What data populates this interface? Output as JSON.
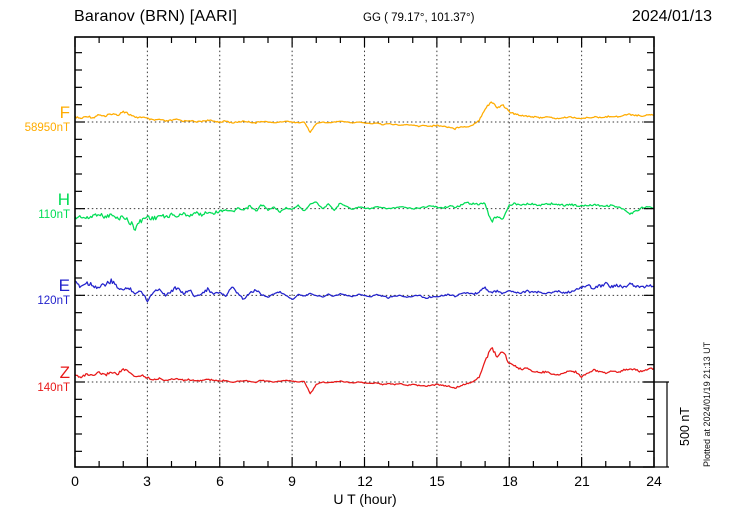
{
  "header": {
    "station": "Baranov (BRN)  [AARI]",
    "coordinates": "GG ( 79.17°, 101.37°)",
    "date": "2024/01/13"
  },
  "x_axis": {
    "label": "U T (hour)",
    "ticks": [
      "0",
      "3",
      "6",
      "9",
      "12",
      "15",
      "18",
      "21",
      "24"
    ]
  },
  "scale_bar": {
    "label": "500 nT",
    "span_nT": 500
  },
  "footer_note": "Plotted at 2024/01/19 21:13 UT",
  "channels": [
    {
      "name": "F",
      "base_label": "58950nT",
      "color": "#FFAC00"
    },
    {
      "name": "H",
      "base_label": "110nT",
      "color": "#00DD55"
    },
    {
      "name": "E",
      "base_label": "120nT",
      "color": "#2222CC"
    },
    {
      "name": "Z",
      "base_label": "140nT",
      "color": "#E81818"
    }
  ],
  "chart_data": {
    "type": "line",
    "title": "Baranov (BRN) [AARI] magnetogram",
    "date": "2024/01/13",
    "xlabel": "U T (hour)",
    "xlim": [
      0,
      24
    ],
    "x_major_tick_hours": 3,
    "x_minor_tick_hours": 1,
    "sample_step_hours": 0.25,
    "y_scale_bar_nT": 500,
    "grid": "dotted vertical at 3h; dotted horizontal baseline per trace",
    "legend_position": "left margin channel labels",
    "series": [
      {
        "name": "F",
        "baseline_nT": 58950,
        "color": "#FFAC00",
        "noise": 0.9,
        "values": [
          30,
          20,
          35,
          25,
          45,
          30,
          50,
          40,
          65,
          45,
          25,
          30,
          20,
          10,
          15,
          5,
          10,
          15,
          5,
          10,
          0,
          5,
          10,
          5,
          0,
          5,
          -5,
          0,
          5,
          0,
          -5,
          5,
          0,
          -5,
          0,
          5,
          0,
          -5,
          0,
          -60,
          -10,
          0,
          -5,
          0,
          5,
          0,
          -5,
          0,
          -5,
          -10,
          -5,
          -15,
          -10,
          -15,
          -20,
          -15,
          -20,
          -25,
          -20,
          -25,
          -20,
          -25,
          -30,
          -40,
          -25,
          -30,
          -15,
          10,
          80,
          118,
          85,
          100,
          60,
          45,
          40,
          35,
          30,
          25,
          30,
          25,
          20,
          25,
          30,
          25,
          20,
          25,
          30,
          25,
          30,
          35,
          30,
          40,
          45,
          40,
          35,
          45,
          40
        ]
      },
      {
        "name": "H",
        "baseline_nT": 110,
        "color": "#00DD55",
        "noise": 1.5,
        "values": [
          -55,
          -45,
          -60,
          -40,
          -30,
          -50,
          -35,
          -60,
          -45,
          -80,
          -110,
          -70,
          -45,
          -60,
          -40,
          -50,
          -35,
          -45,
          -30,
          -40,
          -25,
          -35,
          -20,
          -25,
          -15,
          -5,
          -20,
          0,
          -10,
          15,
          -15,
          25,
          -10,
          10,
          -20,
          5,
          -5,
          20,
          -15,
          30,
          40,
          0,
          25,
          -10,
          35,
          15,
          -5,
          10,
          5,
          0,
          10,
          5,
          0,
          5,
          10,
          5,
          0,
          5,
          10,
          15,
          10,
          5,
          15,
          10,
          20,
          35,
          30,
          25,
          30,
          -75,
          -45,
          -60,
          20,
          30,
          25,
          30,
          25,
          20,
          25,
          30,
          25,
          20,
          25,
          20,
          15,
          20,
          25,
          20,
          15,
          20,
          10,
          -5,
          -35,
          -15,
          5,
          10,
          5
        ]
      },
      {
        "name": "E",
        "baseline_nT": 120,
        "color": "#2222CC",
        "noise": 1.5,
        "values": [
          70,
          55,
          75,
          60,
          45,
          65,
          80,
          50,
          30,
          45,
          10,
          25,
          -30,
          20,
          40,
          0,
          25,
          50,
          10,
          30,
          -10,
          15,
          35,
          5,
          20,
          -5,
          45,
          10,
          -25,
          15,
          30,
          5,
          -10,
          10,
          20,
          0,
          -25,
          5,
          -5,
          10,
          0,
          -10,
          5,
          -5,
          10,
          0,
          -5,
          5,
          0,
          -10,
          5,
          -5,
          -15,
          -5,
          0,
          -10,
          -5,
          0,
          -15,
          -10,
          -5,
          0,
          5,
          -5,
          10,
          15,
          5,
          20,
          45,
          15,
          25,
          10,
          30,
          20,
          15,
          25,
          15,
          20,
          10,
          15,
          25,
          15,
          20,
          30,
          45,
          60,
          40,
          55,
          70,
          50,
          60,
          45,
          65,
          55,
          45,
          60,
          50
        ]
      },
      {
        "name": "Z",
        "baseline_nT": 140,
        "color": "#E81818",
        "noise": 0.9,
        "values": [
          40,
          30,
          45,
          35,
          55,
          40,
          60,
          45,
          75,
          55,
          30,
          40,
          25,
          15,
          20,
          10,
          15,
          20,
          10,
          15,
          5,
          10,
          15,
          10,
          5,
          10,
          0,
          5,
          10,
          5,
          0,
          10,
          5,
          0,
          5,
          10,
          5,
          0,
          5,
          -70,
          -15,
          0,
          -5,
          0,
          5,
          0,
          -5,
          0,
          -5,
          -10,
          -5,
          -15,
          -10,
          -15,
          -10,
          -20,
          -15,
          -20,
          -25,
          -20,
          -15,
          -20,
          -25,
          -35,
          -20,
          -10,
          0,
          30,
          120,
          205,
          150,
          180,
          110,
          90,
          75,
          80,
          65,
          55,
          60,
          50,
          40,
          55,
          65,
          60,
          30,
          55,
          70,
          60,
          55,
          65,
          55,
          70,
          80,
          70,
          60,
          75,
          80
        ]
      }
    ]
  }
}
